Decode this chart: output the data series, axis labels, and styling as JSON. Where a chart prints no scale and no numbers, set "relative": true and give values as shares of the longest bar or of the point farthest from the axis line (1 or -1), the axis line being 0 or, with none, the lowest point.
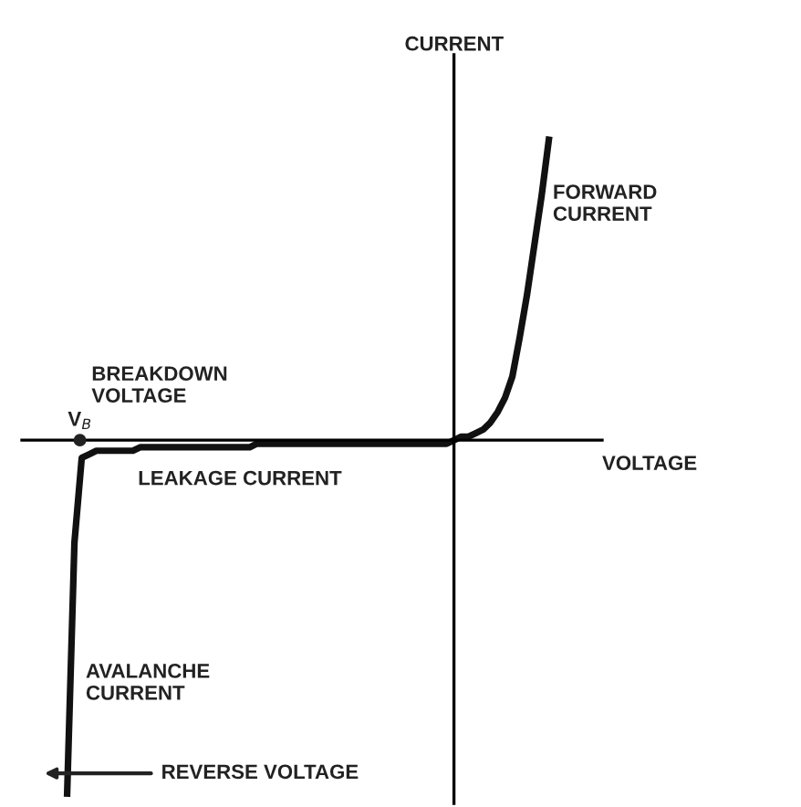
{
  "chart_data": {
    "type": "line",
    "relative": true,
    "xlabel": "VOLTAGE",
    "ylabel": "CURRENT",
    "categories": [
      null,
      null,
      null,
      null,
      null,
      null,
      null,
      null,
      null,
      null,
      null,
      null,
      null,
      null,
      null,
      null,
      null,
      null,
      null,
      null,
      null,
      null,
      null,
      null,
      null,
      null,
      null,
      null,
      null,
      null,
      null,
      null,
      null,
      null,
      null,
      null,
      null,
      null,
      null,
      null,
      null,
      null,
      null,
      null,
      null,
      null,
      null,
      null,
      null,
      null,
      null,
      null,
      null,
      null,
      null,
      null,
      null,
      null,
      null,
      null,
      null,
      null,
      null,
      null,
      null,
      null,
      null
    ],
    "series": [
      {
        "color": "#111111",
        "values": [
          -1,
          -0.29,
          -0.05,
          -0.04,
          -0.03,
          -0.03,
          -0.03,
          -0.03,
          -0.03,
          -0.03,
          -0.02,
          -0.02,
          -0.02,
          -0.02,
          -0.02,
          -0.02,
          -0.02,
          -0.02,
          -0.02,
          -0.02,
          -0.02,
          -0.02,
          -0.02,
          -0.02,
          -0.02,
          -0.02,
          -0.01,
          -0.01,
          -0.01,
          -0.01,
          -0.01,
          -0.01,
          -0.01,
          -0.01,
          -0.01,
          -0.01,
          -0.01,
          -0.01,
          -0.01,
          -0.01,
          -0.01,
          -0.01,
          -0.01,
          -0.01,
          -0.01,
          -0.01,
          -0.01,
          -0.01,
          -0.01,
          -0.01,
          -0.01,
          -0.01,
          -0.01,
          0,
          0.01,
          0.01,
          0.02,
          0.03,
          0.05,
          0.08,
          0.12,
          0.18,
          0.29,
          0.41,
          0.55,
          0.69,
          0.85
        ]
      }
    ],
    "marker": "none",
    "line_style": "solid",
    "annotations": [
      "BREAKDOWN\nVOLTAGE",
      "V$_{B}$",
      "LEAKAGE CURRENT",
      "FORWARD\nCURRENT",
      "AVALANCHE\nCURRENT",
      "REVERSE VOLTAGE"
    ]
  }
}
